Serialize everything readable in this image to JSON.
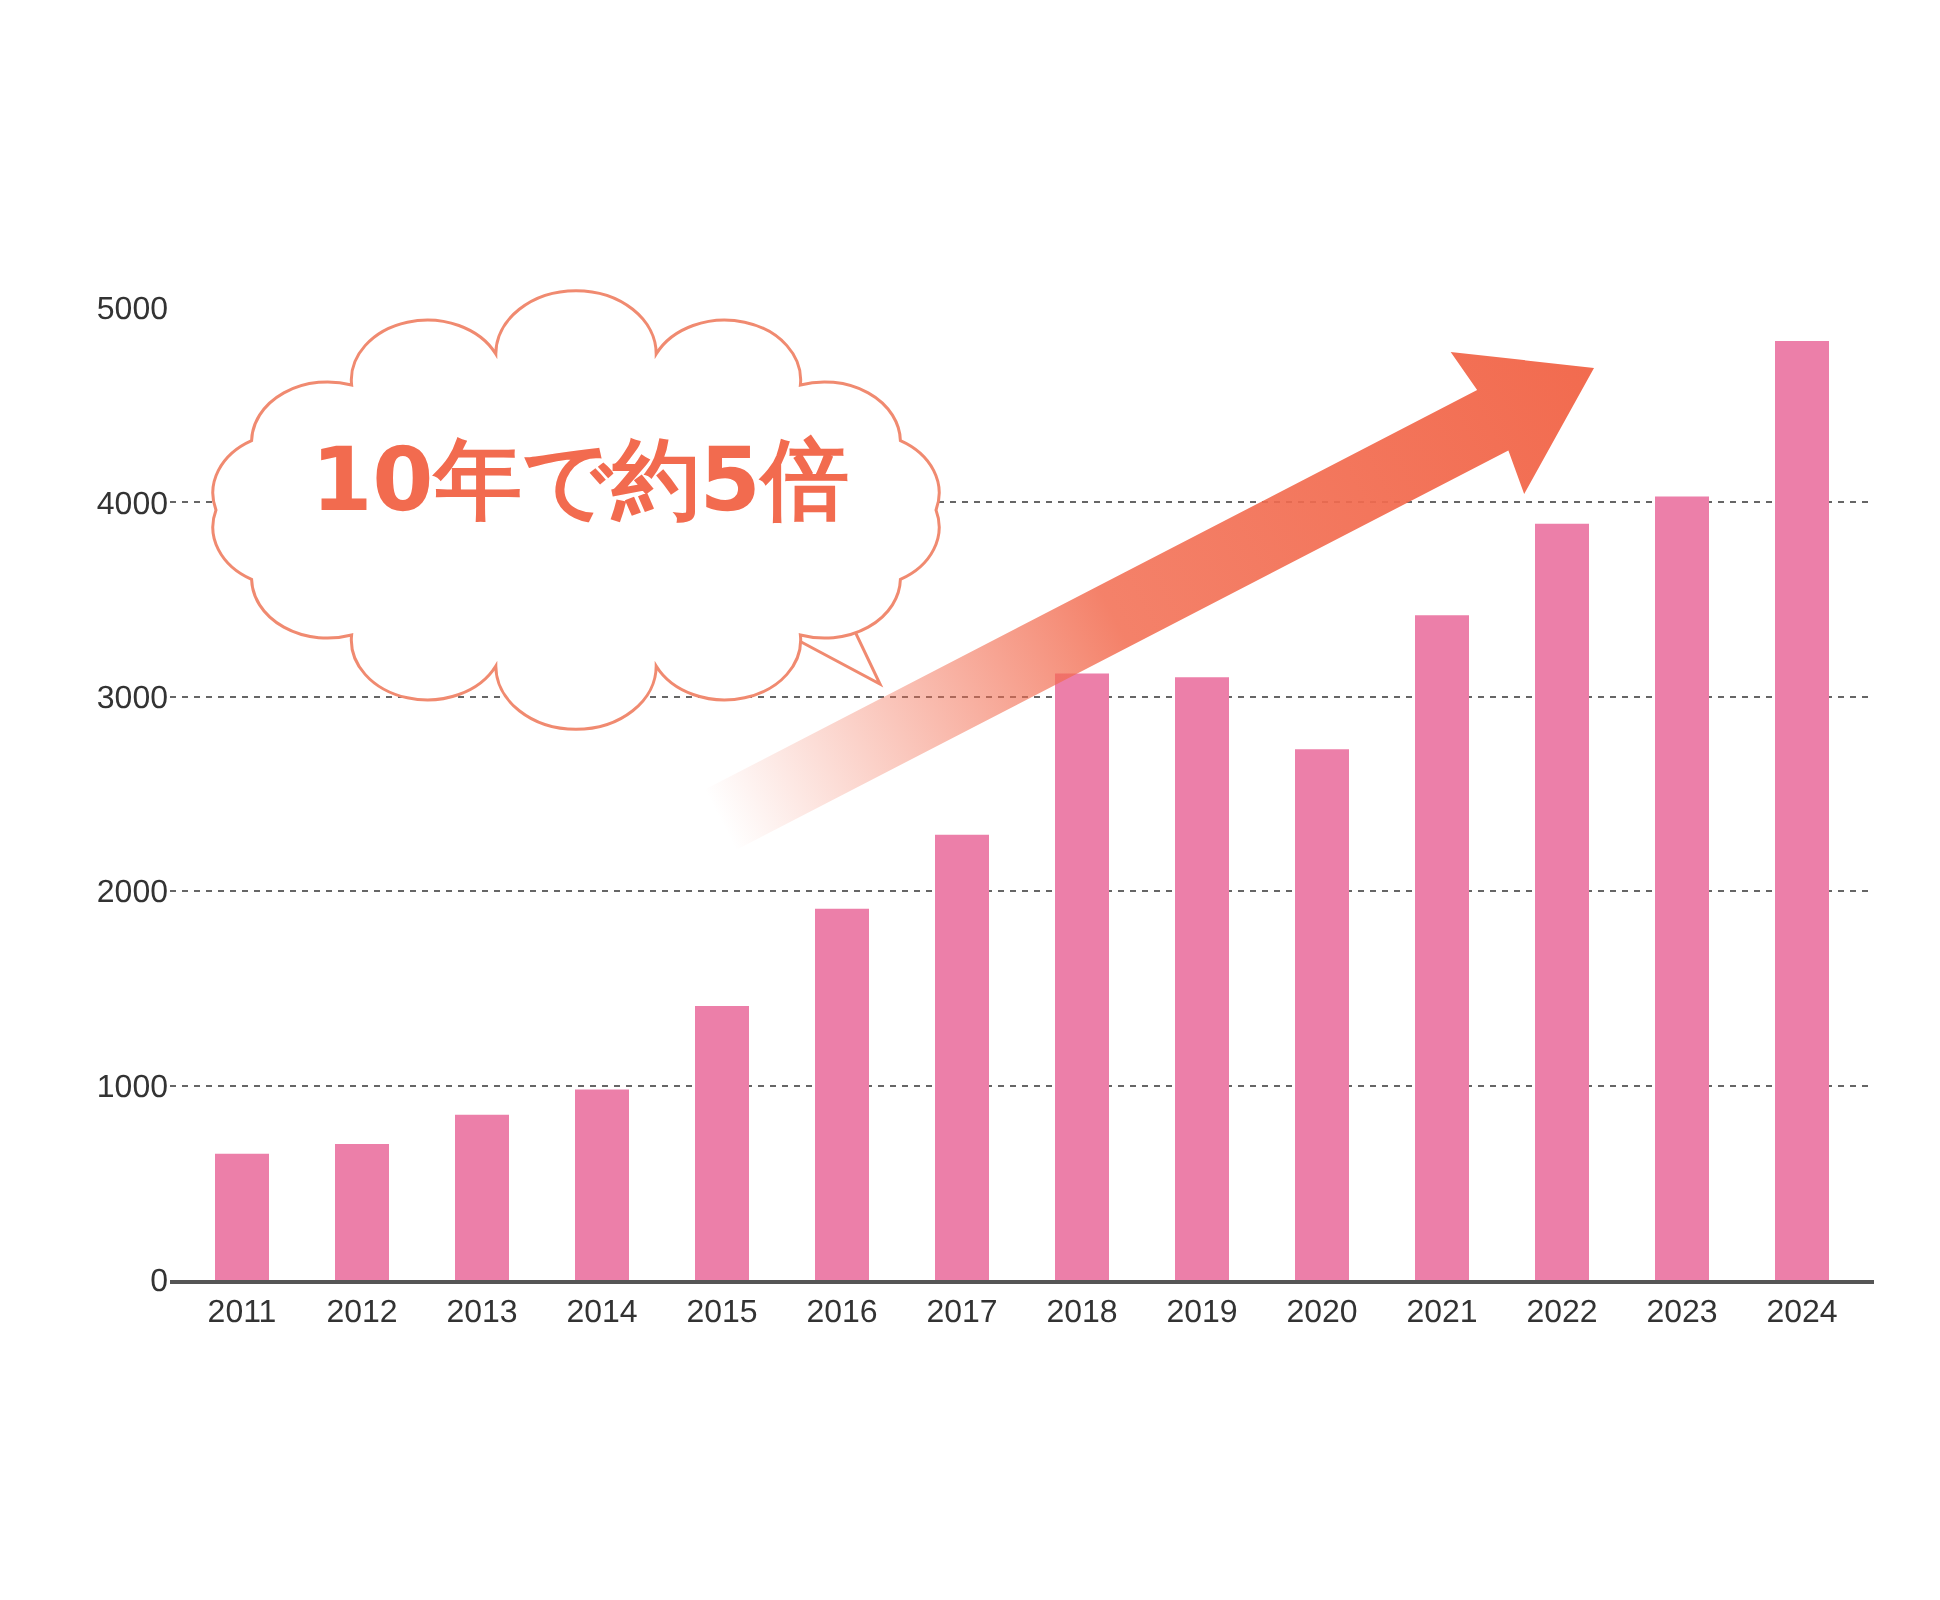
{
  "chart_data": {
    "type": "bar",
    "categories": [
      "2011",
      "2012",
      "2013",
      "2014",
      "2015",
      "2016",
      "2017",
      "2018",
      "2019",
      "2020",
      "2021",
      "2022",
      "2023",
      "2024"
    ],
    "values": [
      650,
      700,
      850,
      980,
      1410,
      1910,
      2290,
      3120,
      3100,
      2730,
      3420,
      3890,
      4030,
      4830
    ],
    "color": "#ec7fa9",
    "ylim": [
      0,
      5000
    ],
    "yticks": [
      0,
      1000,
      2000,
      3000,
      4000,
      5000
    ],
    "grid": "y",
    "annotations": [
      "10年で約5倍"
    ]
  }
}
